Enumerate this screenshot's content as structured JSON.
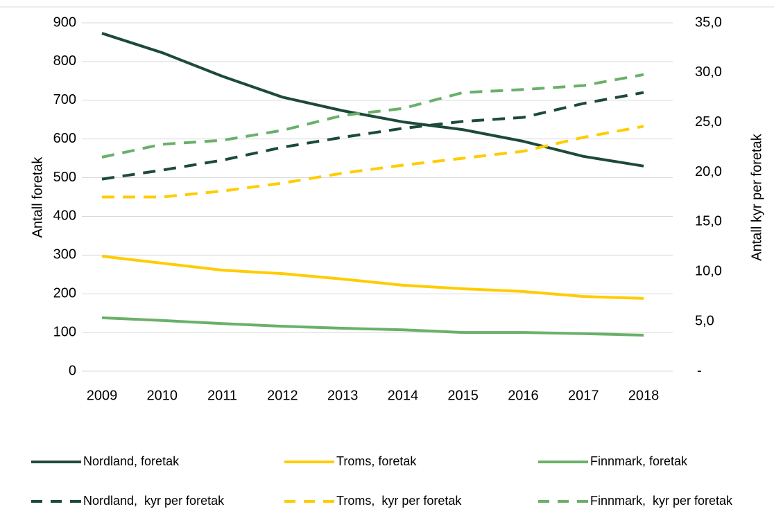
{
  "chart_data": {
    "type": "line",
    "x": [
      2009,
      2010,
      2011,
      2012,
      2013,
      2014,
      2015,
      2016,
      2017,
      2018
    ],
    "xlim": [
      2009,
      2018
    ],
    "xticks": [
      2009,
      2010,
      2011,
      2012,
      2013,
      2014,
      2015,
      2016,
      2017,
      2018
    ],
    "ylabel": "Antall foretak",
    "y2label": "Antall kyr per foretak",
    "ylim": [
      0,
      900
    ],
    "yticks": [
      0,
      100,
      200,
      300,
      400,
      500,
      600,
      700,
      800,
      900
    ],
    "y2lim": [
      0,
      35
    ],
    "y2ticks": [
      {
        "value": 0,
        "label": "-"
      },
      {
        "value": 5,
        "label": "5,0"
      },
      {
        "value": 10,
        "label": "10,0"
      },
      {
        "value": 15,
        "label": "15,0"
      },
      {
        "value": 20,
        "label": "20,0"
      },
      {
        "value": 25,
        "label": "25,0"
      },
      {
        "value": 30,
        "label": "30,0"
      },
      {
        "value": 35,
        "label": "35,0"
      }
    ],
    "grid": true,
    "legend": "bottom",
    "series": [
      {
        "name": "Nordland, foretak",
        "color": "#1d4a3a",
        "dashed": false,
        "values": [
          873,
          823,
          762,
          708,
          673,
          644,
          624,
          594,
          555,
          530
        ]
      },
      {
        "name": "Troms, foretak",
        "color": "#ffcc00",
        "dashed": false,
        "values": [
          297,
          279,
          261,
          252,
          238,
          222,
          213,
          206,
          193,
          188
        ]
      },
      {
        "name": "Finnmark, foretak",
        "color": "#6ab06a",
        "dashed": false,
        "values": [
          138,
          131,
          123,
          116,
          111,
          107,
          100,
          100,
          97,
          93
        ]
      },
      {
        "name": "Nordland,  kyr per foretak",
        "color": "#1d4a3a",
        "dashed": true,
        "axis": "y2",
        "values": [
          19.3,
          20.2,
          21.2,
          22.5,
          23.5,
          24.4,
          25.1,
          25.5,
          26.9,
          28.0
        ]
      },
      {
        "name": "Troms,  kyr per foretak",
        "color": "#ffcc00",
        "dashed": true,
        "axis": "y2",
        "values": [
          17.5,
          17.5,
          18.1,
          18.9,
          19.9,
          20.7,
          21.4,
          22.1,
          23.5,
          24.6
        ]
      },
      {
        "name": "Finnmark,  kyr per foretak",
        "color": "#6ab06a",
        "dashed": true,
        "axis": "y2",
        "values": [
          21.5,
          22.8,
          23.2,
          24.2,
          25.7,
          26.4,
          28.0,
          28.3,
          28.7,
          29.8
        ]
      }
    ]
  }
}
